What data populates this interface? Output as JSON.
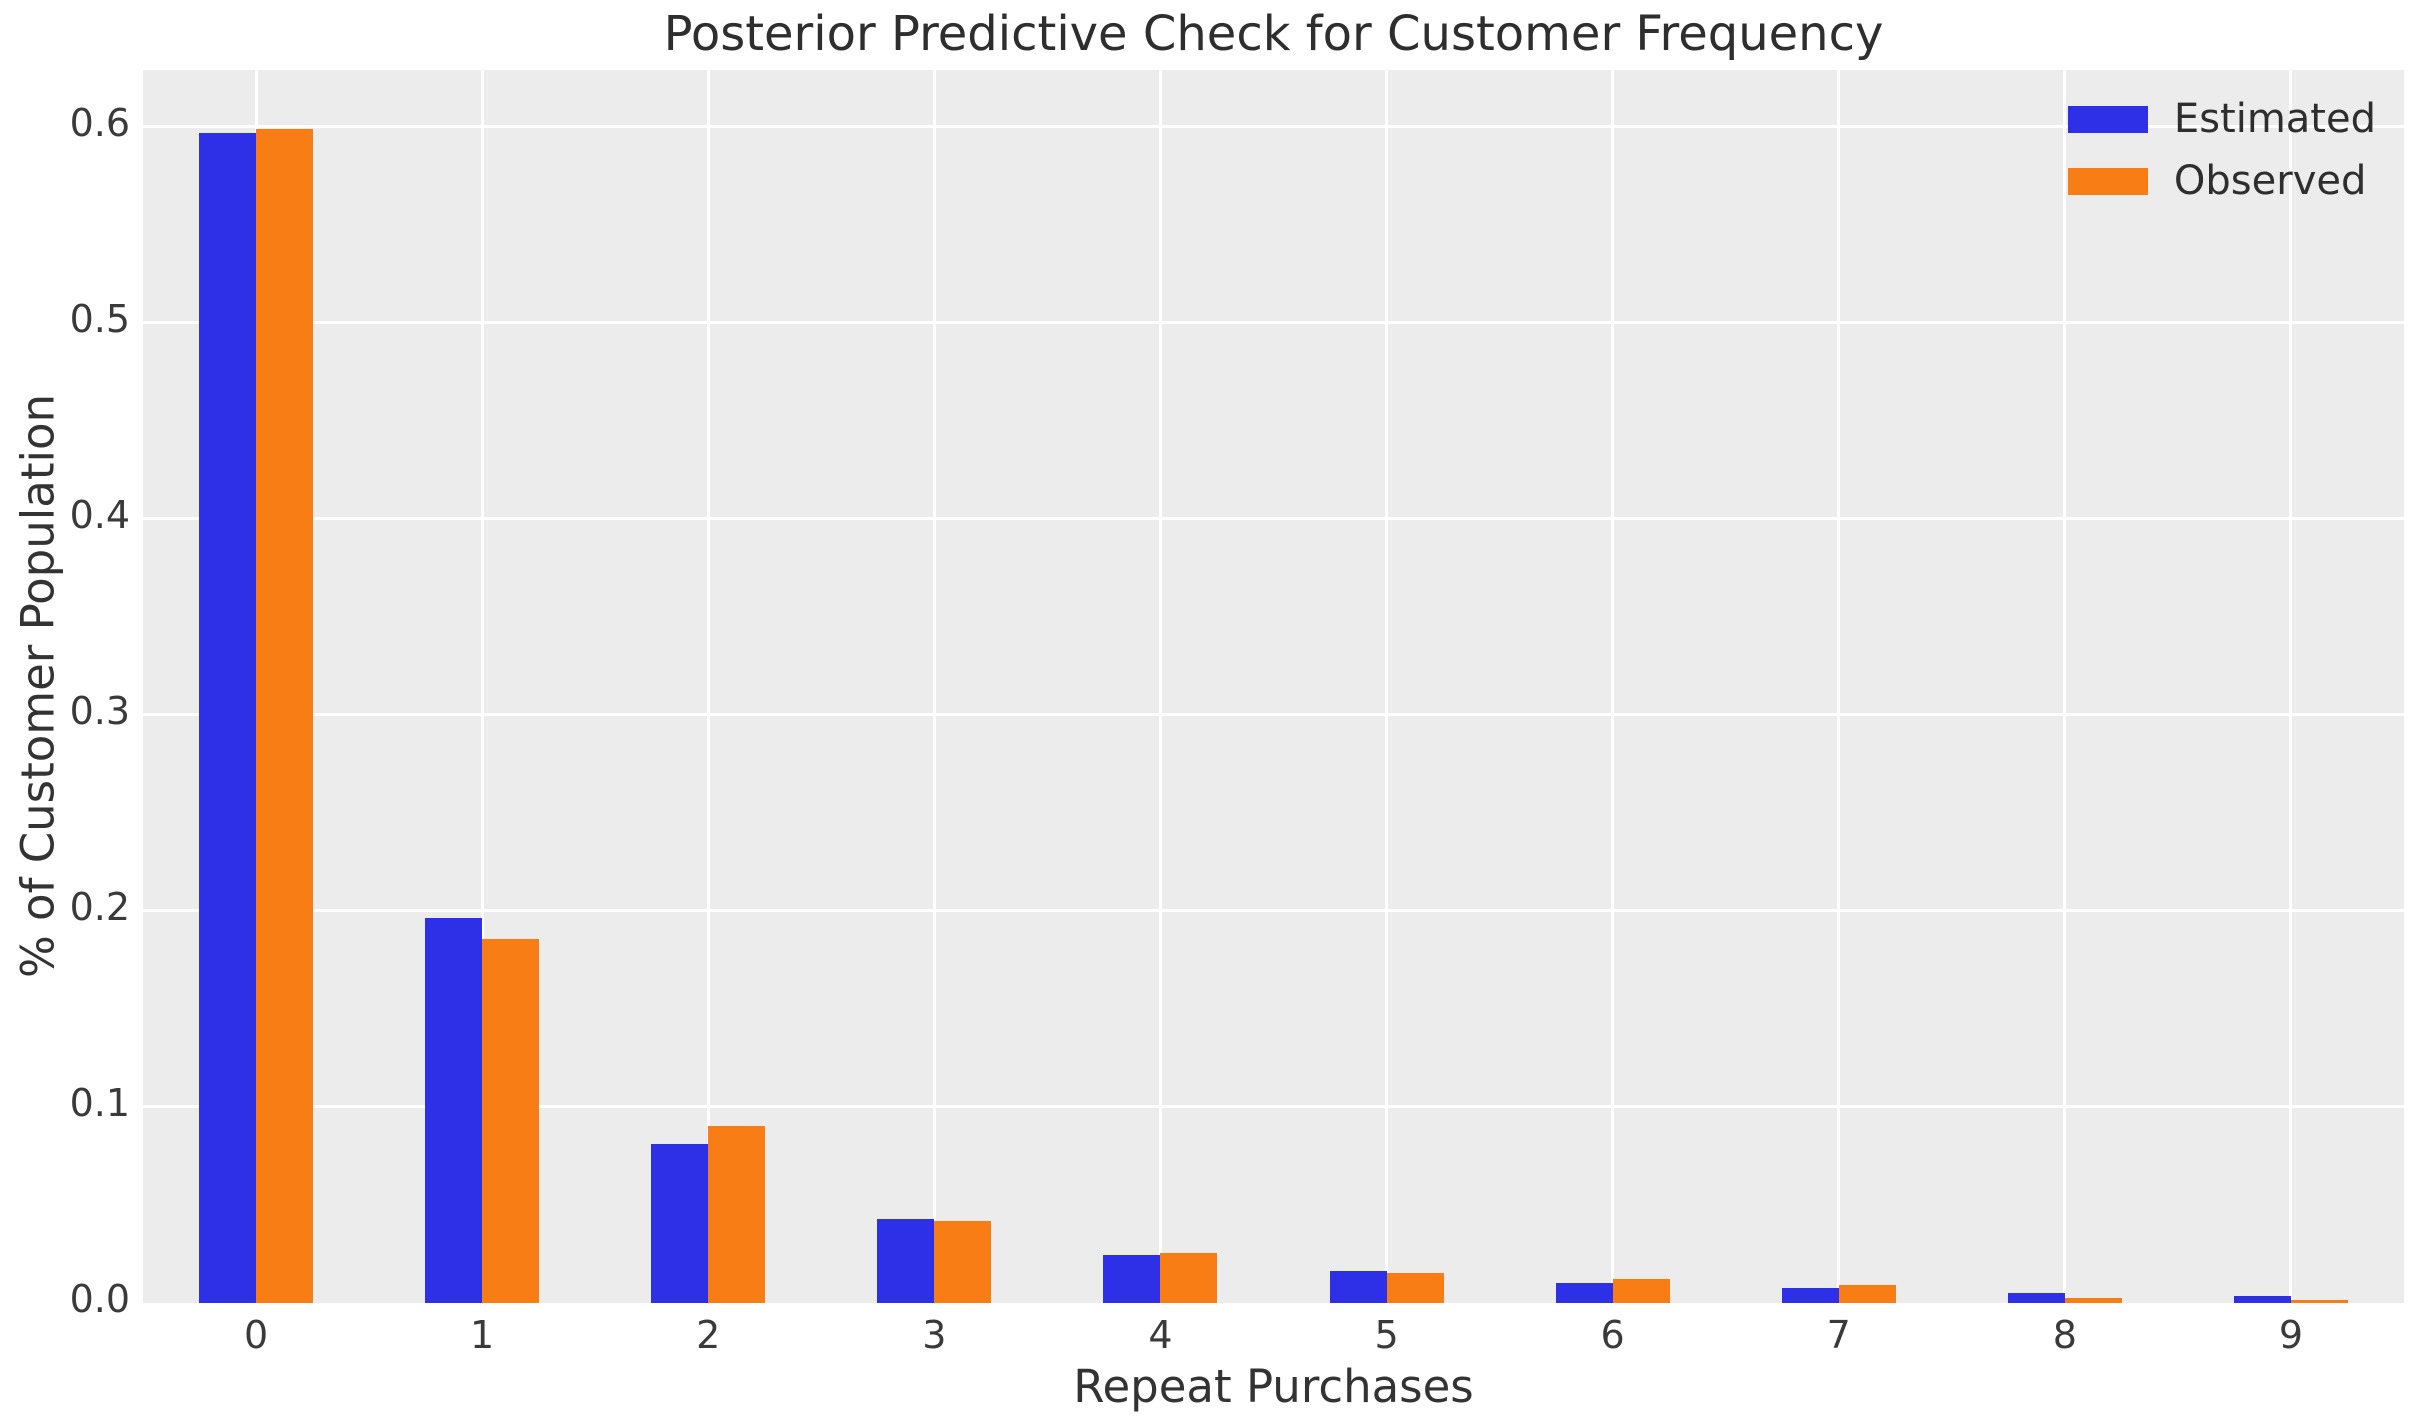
{
  "chart": {
    "title": "Posterior Predictive Check for Customer Frequency",
    "xlabel": "Repeat Purchases",
    "ylabel": "% of Customer Population",
    "y_ticks": [
      "0.0",
      "0.1",
      "0.2",
      "0.3",
      "0.4",
      "0.5",
      "0.6"
    ],
    "x_ticks": [
      "0",
      "1",
      "2",
      "3",
      "4",
      "5",
      "6",
      "7",
      "8",
      "9"
    ],
    "legend": [
      {
        "label": "Estimated",
        "color": "#2d30e6"
      },
      {
        "label": "Observed",
        "color": "#f97d15"
      }
    ]
  },
  "colors": {
    "estimated": "#2d30e6",
    "observed": "#f97d15",
    "plot_background": "#ececec",
    "gridline": "#ffffff",
    "text": "#333333"
  },
  "chart_data": {
    "type": "bar",
    "title": "Posterior Predictive Check for Customer Frequency",
    "xlabel": "Repeat Purchases",
    "ylabel": "% of Customer Population",
    "categories": [
      0,
      1,
      2,
      3,
      4,
      5,
      6,
      7,
      8,
      9
    ],
    "series": [
      {
        "name": "Estimated",
        "color": "#2d30e6",
        "values": [
          0.597,
          0.1965,
          0.081,
          0.0427,
          0.0245,
          0.0162,
          0.01,
          0.0075,
          0.0051,
          0.0036
        ]
      },
      {
        "name": "Observed",
        "color": "#f97d15",
        "values": [
          0.599,
          0.1857,
          0.0903,
          0.0418,
          0.0257,
          0.0155,
          0.0121,
          0.0092,
          0.0024,
          0.0015
        ]
      }
    ],
    "ylim": [
      0,
      0.629
    ],
    "grid": true,
    "legend_position": "upper right",
    "bar_width_fraction": 0.25
  }
}
